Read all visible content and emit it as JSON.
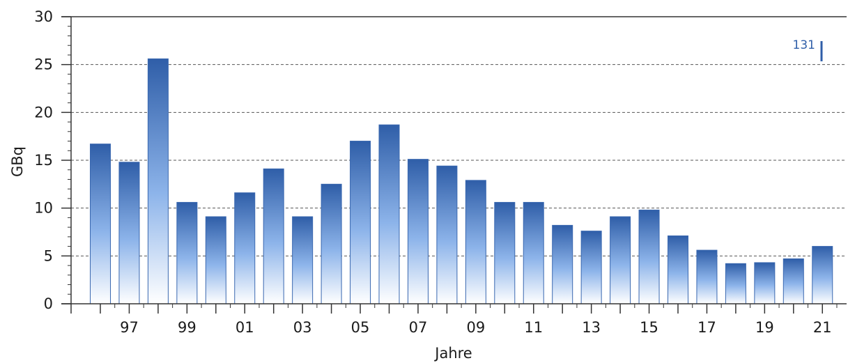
{
  "chart_data": {
    "type": "bar",
    "x": [
      1996,
      1997,
      1998,
      1999,
      2000,
      2001,
      2002,
      2003,
      2004,
      2005,
      2006,
      2007,
      2008,
      2009,
      2010,
      2011,
      2012,
      2013,
      2014,
      2015,
      2016,
      2017,
      2018,
      2019,
      2020,
      2021
    ],
    "values": [
      16.7,
      14.8,
      25.6,
      10.6,
      9.1,
      11.6,
      14.1,
      9.1,
      12.5,
      17.0,
      18.7,
      15.1,
      14.4,
      12.9,
      10.6,
      10.6,
      8.2,
      7.6,
      9.1,
      9.8,
      7.1,
      5.6,
      4.2,
      4.3,
      4.7,
      6.0
    ],
    "x_tick_labels": [
      {
        "year": 1997,
        "label": "97"
      },
      {
        "year": 1999,
        "label": "99"
      },
      {
        "year": 2001,
        "label": "01"
      },
      {
        "year": 2003,
        "label": "03"
      },
      {
        "year": 2005,
        "label": "05"
      },
      {
        "year": 2007,
        "label": "07"
      },
      {
        "year": 2009,
        "label": "09"
      },
      {
        "year": 2011,
        "label": "11"
      },
      {
        "year": 2013,
        "label": "13"
      },
      {
        "year": 2015,
        "label": "15"
      },
      {
        "year": 2017,
        "label": "17"
      },
      {
        "year": 2019,
        "label": "19"
      },
      {
        "year": 2021,
        "label": "21"
      }
    ],
    "y_ticks": [
      0,
      5,
      10,
      15,
      20,
      25,
      30
    ],
    "ylim": [
      0,
      30
    ],
    "xlabel": "Jahre",
    "ylabel": "GBq",
    "annotation": "131",
    "grid": "horizontal dashed",
    "colors": {
      "bar_top": "#2f5ea8",
      "bar_mid": "#8db4ea",
      "bar_bottom": "#ffffff",
      "bar_edge": "#3a68b0",
      "annotation": "#2f5ea8",
      "axis": "#333333"
    }
  }
}
